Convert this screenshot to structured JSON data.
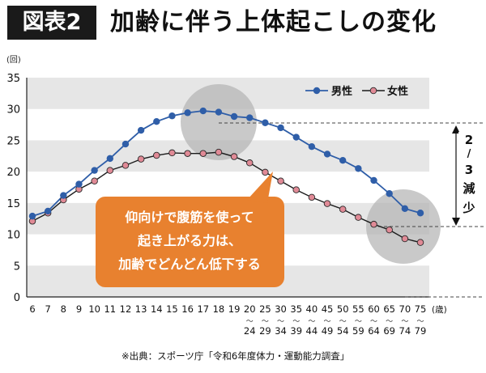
{
  "header": {
    "badge": "図表2",
    "title": "加齢に伴う上体起こしの変化"
  },
  "colors": {
    "male": "#2f5ea8",
    "female_line": "#1a1a1a",
    "female_marker": "#e08a96",
    "callout": "#e8812f",
    "band": "#e6e6e6",
    "highlight_circle": "#b4b4b4"
  },
  "chart_data": {
    "type": "line",
    "yaxis_unit": "(回)",
    "xaxis_unit": "(歳)",
    "ylim": [
      0,
      35
    ],
    "yticks": [
      0,
      5,
      10,
      15,
      20,
      25,
      30,
      35
    ],
    "categories": [
      "6",
      "7",
      "8",
      "9",
      "10",
      "11",
      "12",
      "13",
      "14",
      "15",
      "16",
      "17",
      "18",
      "19",
      "20",
      "25",
      "30",
      "35",
      "40",
      "45",
      "50",
      "55",
      "60",
      "65",
      "70",
      "75"
    ],
    "category_ranges": [
      "",
      "",
      "",
      "",
      "",
      "",
      "",
      "",
      "",
      "",
      "",
      "",
      "",
      "",
      "24",
      "29",
      "34",
      "39",
      "44",
      "49",
      "54",
      "59",
      "64",
      "69",
      "74",
      "79"
    ],
    "series": [
      {
        "name": "男性",
        "values": [
          12.9,
          13.7,
          16.2,
          18.0,
          20.2,
          22.1,
          24.4,
          26.6,
          28.0,
          28.9,
          29.4,
          29.7,
          29.5,
          28.8,
          28.6,
          27.8,
          27.0,
          25.5,
          24.0,
          22.8,
          21.8,
          20.5,
          18.6,
          16.5,
          14.1,
          13.4
        ]
      },
      {
        "name": "女性",
        "values": [
          12.1,
          13.4,
          15.5,
          17.2,
          18.5,
          20.2,
          21.0,
          22.0,
          22.6,
          23.0,
          22.9,
          22.9,
          23.1,
          22.4,
          21.4,
          19.9,
          18.5,
          17.1,
          15.9,
          14.9,
          14.0,
          12.7,
          11.6,
          10.7,
          9.3,
          8.7
        ]
      }
    ],
    "legend_position": "top-right",
    "annotation": {
      "reduction_text": [
        "2",
        "/",
        "3",
        "減",
        "少"
      ],
      "callout_lines": [
        "仰向けで腹筋を使って",
        "起き上がる力は、",
        "加齢でどんどん低下する"
      ]
    },
    "source": "※出典：スポーツ庁「令和6年度体力・運動能力調査」"
  }
}
